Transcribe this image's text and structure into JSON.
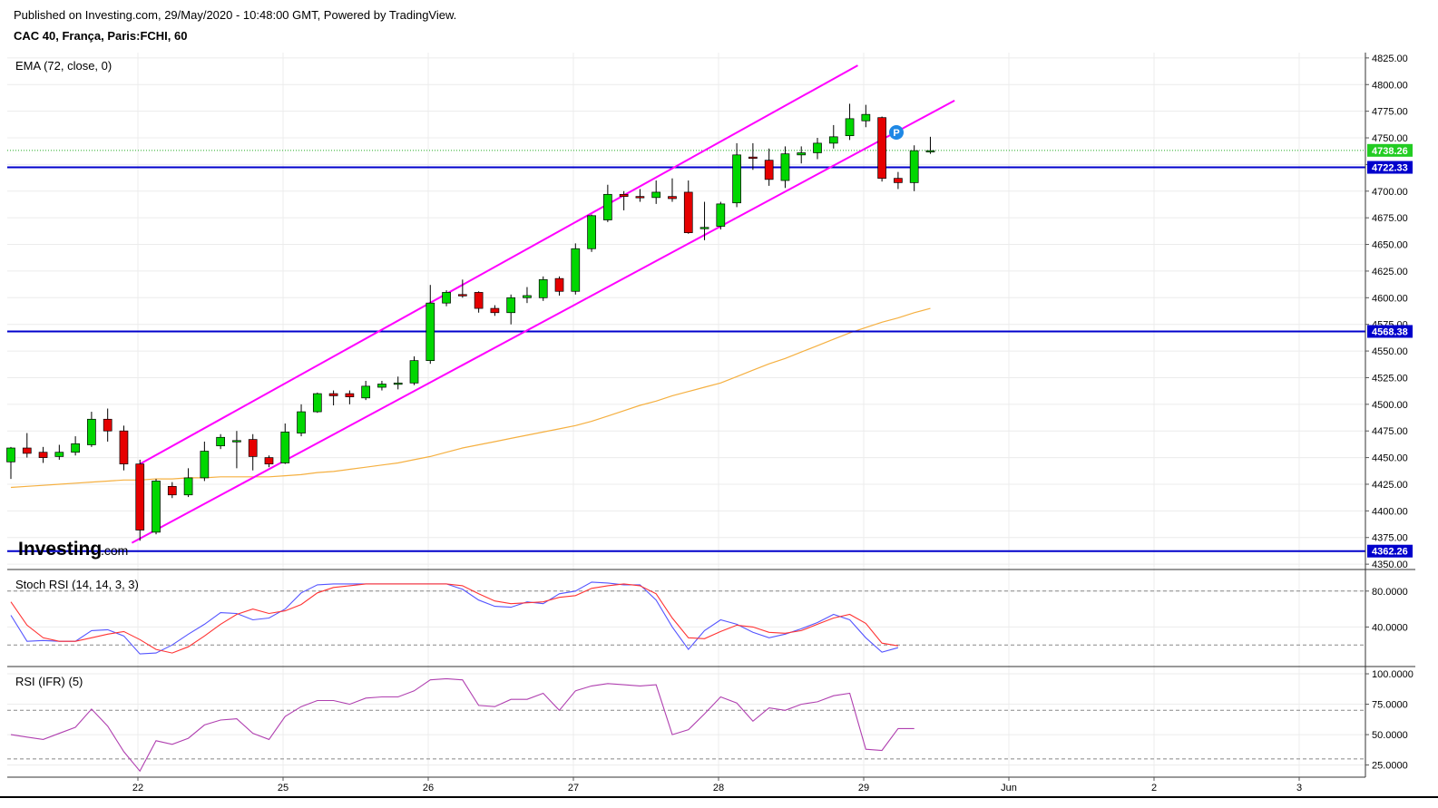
{
  "header": {
    "published": "Published on Investing.com, 29/May/2020 - 10:48:00 GMT, Powered by TradingView.",
    "instrument": "CAC 40, França, Paris:FCHI, 60"
  },
  "logo": {
    "main": "Investing",
    "suffix": ".com"
  },
  "marker_label": "P",
  "chart_data": [
    {
      "type": "candlestick",
      "label": "EMA (72, close, 0)",
      "x_ticks": [
        "22",
        "25",
        "26",
        "27",
        "28",
        "29",
        "Jun",
        "2",
        "3"
      ],
      "y_ticks": [
        "4350.00",
        "4375.00",
        "4400.00",
        "4425.00",
        "4450.00",
        "4475.00",
        "4500.00",
        "4525.00",
        "4550.00",
        "4575.00",
        "4600.00",
        "4625.00",
        "4650.00",
        "4675.00",
        "4700.00",
        "4725.00",
        "4750.00",
        "4775.00",
        "4800.00",
        "4825.00"
      ],
      "ylim": [
        4345,
        4830
      ],
      "last_price": "4738.26",
      "levels": [
        {
          "value": 4722.33,
          "label": "4722.33",
          "color": "#0000cc"
        },
        {
          "value": 4568.38,
          "label": "4568.38",
          "color": "#0000cc"
        },
        {
          "value": 4362.26,
          "label": "4362.26",
          "color": "#0000cc"
        }
      ],
      "candles": [
        [
          4446,
          4460,
          4430,
          4459
        ],
        [
          4459,
          4473,
          4450,
          4454
        ],
        [
          4455,
          4460,
          4445,
          4450
        ],
        [
          4451,
          4462,
          4448,
          4455
        ],
        [
          4455,
          4470,
          4452,
          4463
        ],
        [
          4462,
          4493,
          4460,
          4486
        ],
        [
          4486,
          4496,
          4465,
          4475
        ],
        [
          4475,
          4480,
          4438,
          4444
        ],
        [
          4444,
          4448,
          4372,
          4382
        ],
        [
          4380,
          4430,
          4378,
          4428
        ],
        [
          4423,
          4427,
          4412,
          4415
        ],
        [
          4415,
          4440,
          4413,
          4431
        ],
        [
          4431,
          4465,
          4428,
          4456
        ],
        [
          4461,
          4472,
          4458,
          4469
        ],
        [
          4465,
          4475,
          4440,
          4466
        ],
        [
          4467,
          4472,
          4438,
          4451
        ],
        [
          4450,
          4452,
          4441,
          4444
        ],
        [
          4445,
          4482,
          4444,
          4474
        ],
        [
          4473,
          4500,
          4470,
          4493
        ],
        [
          4493,
          4511,
          4492,
          4510
        ],
        [
          4510,
          4513,
          4499,
          4508
        ],
        [
          4510,
          4513,
          4500,
          4507
        ],
        [
          4506,
          4522,
          4504,
          4517
        ],
        [
          4516,
          4522,
          4513,
          4519
        ],
        [
          4519,
          4526,
          4514,
          4520
        ],
        [
          4520,
          4545,
          4518,
          4541
        ],
        [
          4541,
          4612,
          4538,
          4595
        ],
        [
          4595,
          4607,
          4592,
          4605
        ],
        [
          4603,
          4617,
          4600,
          4602
        ],
        [
          4605,
          4606,
          4586,
          4590
        ],
        [
          4590,
          4593,
          4583,
          4586
        ],
        [
          4586,
          4603,
          4575,
          4600
        ],
        [
          4600,
          4610,
          4595,
          4602
        ],
        [
          4600,
          4620,
          4597,
          4617
        ],
        [
          4618,
          4620,
          4602,
          4606
        ],
        [
          4606,
          4651,
          4603,
          4646
        ],
        [
          4646,
          4678,
          4643,
          4677
        ],
        [
          4673,
          4706,
          4671,
          4697
        ],
        [
          4697,
          4700,
          4682,
          4695
        ],
        [
          4695,
          4702,
          4690,
          4694
        ],
        [
          4694,
          4710,
          4688,
          4699
        ],
        [
          4695,
          4712,
          4690,
          4693
        ],
        [
          4699,
          4710,
          4660,
          4661
        ],
        [
          4665,
          4690,
          4654,
          4666
        ],
        [
          4667,
          4690,
          4664,
          4688
        ],
        [
          4689,
          4745,
          4685,
          4734
        ],
        [
          4732,
          4745,
          4720,
          4731
        ],
        [
          4729,
          4740,
          4705,
          4711
        ],
        [
          4710,
          4742,
          4703,
          4735
        ],
        [
          4734,
          4742,
          4726,
          4736
        ],
        [
          4736,
          4750,
          4730,
          4745
        ],
        [
          4745,
          4762,
          4740,
          4751
        ],
        [
          4752,
          4782,
          4748,
          4768
        ],
        [
          4766,
          4781,
          4760,
          4772
        ],
        [
          4769,
          4770,
          4709,
          4712
        ],
        [
          4712,
          4718,
          4702,
          4708
        ],
        [
          4708,
          4743,
          4700,
          4738
        ],
        [
          4738,
          4751,
          4735,
          4738
        ]
      ],
      "ema": [
        4422,
        4423,
        4424,
        4425,
        4426,
        4427,
        4428,
        4429,
        4429,
        4430,
        4430,
        4431,
        4431,
        4432,
        4432,
        4432,
        4432,
        4433,
        4434,
        4436,
        4437,
        4439,
        4441,
        4443,
        4445,
        4448,
        4451,
        4455,
        4459,
        4462,
        4465,
        4468,
        4471,
        4474,
        4477,
        4480,
        4484,
        4489,
        4494,
        4499,
        4503,
        4508,
        4512,
        4516,
        4520,
        4526,
        4532,
        4538,
        4543,
        4549,
        4555,
        4561,
        4567,
        4572,
        4577,
        4581,
        4586,
        4590
      ],
      "channel": {
        "upper": [
          [
            8,
            4444
          ],
          [
            52.5,
            4818
          ]
        ],
        "lower": [
          [
            7.5,
            4370
          ],
          [
            58.5,
            4785
          ]
        ]
      }
    },
    {
      "type": "line",
      "label": "Stoch RSI (14, 14, 3, 3)",
      "y_ticks": [
        "40.0000",
        "80.0000"
      ],
      "ylim": [
        0,
        100
      ],
      "dashed_levels": [
        20,
        80
      ],
      "series": [
        {
          "color": "#5555ff",
          "values": [
            53,
            24,
            25,
            24,
            24,
            36,
            37,
            30,
            10,
            11,
            20,
            32,
            43,
            56,
            55,
            48,
            50,
            60,
            78,
            87,
            88,
            88,
            88,
            88,
            88,
            88,
            88,
            88,
            82,
            70,
            63,
            62,
            68,
            66,
            77,
            80,
            90,
            89,
            87,
            87,
            70,
            40,
            15,
            36,
            48,
            43,
            34,
            28,
            32,
            38,
            45,
            54,
            48,
            28,
            12,
            17
          ]
        },
        {
          "color": "#ff3333",
          "values": [
            68,
            42,
            28,
            24,
            24,
            28,
            32,
            35,
            26,
            15,
            11,
            18,
            30,
            43,
            54,
            60,
            55,
            58,
            65,
            78,
            84,
            86,
            88,
            88,
            88,
            88,
            88,
            88,
            86,
            77,
            69,
            66,
            67,
            68,
            73,
            75,
            83,
            86,
            88,
            86,
            77,
            50,
            28,
            27,
            35,
            42,
            40,
            34,
            33,
            36,
            43,
            50,
            54,
            44,
            22,
            19
          ]
        }
      ]
    },
    {
      "type": "line",
      "label": "RSI (IFR) (5)",
      "y_ticks": [
        "25.0000",
        "50.0000",
        "75.0000",
        "100.0000"
      ],
      "ylim": [
        18,
        103
      ],
      "dashed_levels": [
        30,
        70
      ],
      "series": [
        {
          "color": "#b040b0",
          "values": [
            50,
            48,
            46,
            51,
            56,
            71,
            57,
            36,
            20,
            45,
            42,
            47,
            58,
            62,
            63,
            51,
            46,
            65,
            73,
            78,
            78,
            75,
            80,
            81,
            81,
            86,
            95,
            96,
            95,
            74,
            73,
            79,
            79,
            84,
            70,
            86,
            90,
            92,
            91,
            90,
            91,
            50,
            54,
            67,
            81,
            76,
            61,
            72,
            70,
            75,
            77,
            82,
            84,
            38,
            37,
            55,
            55
          ]
        }
      ]
    }
  ]
}
